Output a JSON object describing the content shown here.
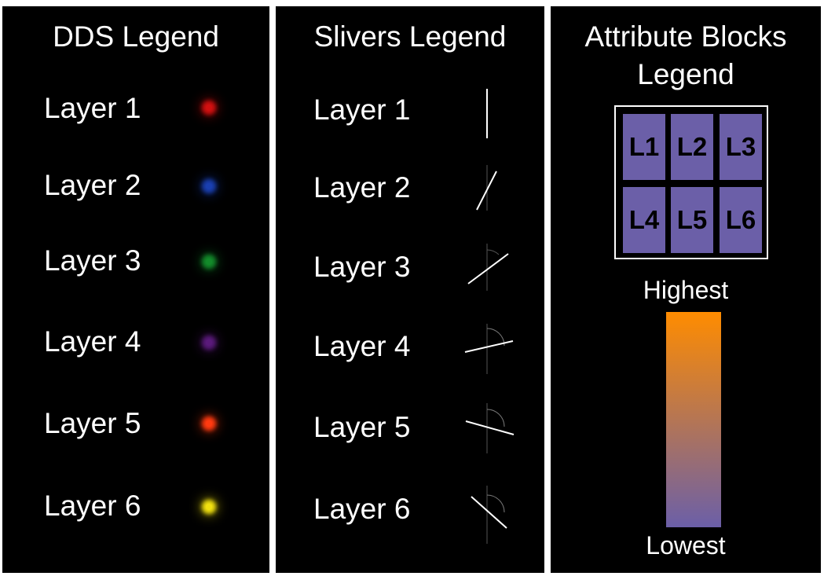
{
  "dds": {
    "title": "DDS Legend",
    "items": [
      {
        "label": "Layer 1",
        "color": "#d11010"
      },
      {
        "label": "Layer 2",
        "color": "#1a3fb0"
      },
      {
        "label": "Layer 3",
        "color": "#138a2a"
      },
      {
        "label": "Layer 4",
        "color": "#5a1a7a"
      },
      {
        "label": "Layer 5",
        "color": "#ff3a10"
      },
      {
        "label": "Layer 6",
        "color": "#f0e010"
      }
    ]
  },
  "slivers": {
    "title": "Slivers Legend",
    "items": [
      {
        "label": "Layer 1"
      },
      {
        "label": "Layer 2"
      },
      {
        "label": "Layer 3"
      },
      {
        "label": "Layer 4"
      },
      {
        "label": "Layer 5"
      },
      {
        "label": "Layer 6"
      }
    ]
  },
  "attribute_blocks": {
    "title_line1": "Attribute Blocks",
    "title_line2": "Legend",
    "cells": [
      "L1",
      "L2",
      "L3",
      "L4",
      "L5",
      "L6"
    ],
    "cell_color": "#6b5fa8",
    "gradient": {
      "high_label": "Highest",
      "low_label": "Lowest",
      "high_color": "#ff8c00",
      "low_color": "#6b5fa8"
    }
  }
}
